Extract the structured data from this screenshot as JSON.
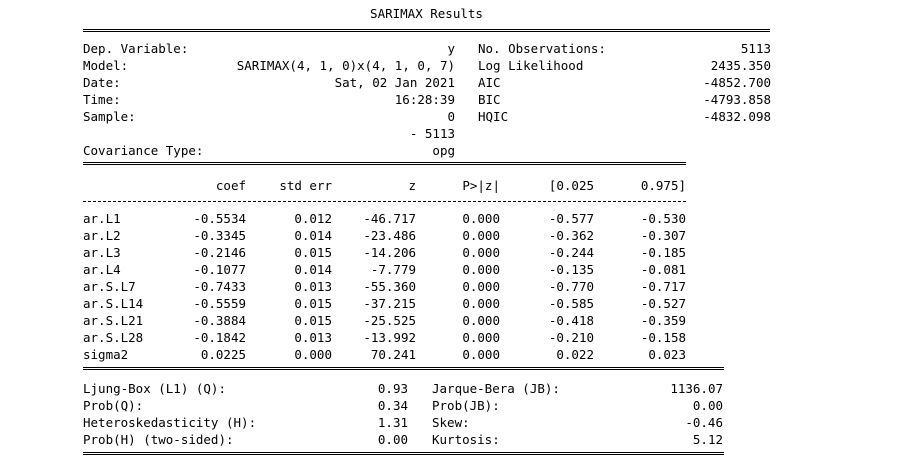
{
  "title": "SARIMAX Results",
  "header": {
    "left": [
      {
        "label": "Dep. Variable:",
        "value": "y"
      },
      {
        "label": "Model:",
        "value": "SARIMAX(4, 1, 0)x(4, 1, 0, 7)"
      },
      {
        "label": "Date:",
        "value": "Sat, 02 Jan 2021"
      },
      {
        "label": "Time:",
        "value": "16:28:39"
      },
      {
        "label": "Sample:",
        "value": "0"
      },
      {
        "label": "",
        "value": "- 5113"
      },
      {
        "label": "Covariance Type:",
        "value": "opg"
      }
    ],
    "right": [
      {
        "label": "No. Observations:",
        "value": "5113"
      },
      {
        "label": "Log Likelihood",
        "value": "2435.350"
      },
      {
        "label": "AIC",
        "value": "-4852.700"
      },
      {
        "label": "BIC",
        "value": "-4793.858"
      },
      {
        "label": "HQIC",
        "value": "-4832.098"
      }
    ]
  },
  "coef_table": {
    "columns": [
      "coef",
      "std err",
      "z",
      "P>|z|",
      "[0.025",
      "0.975]"
    ],
    "rows": [
      {
        "name": "ar.L1",
        "values": [
          "-0.5534",
          "0.012",
          "-46.717",
          "0.000",
          "-0.577",
          "-0.530"
        ]
      },
      {
        "name": "ar.L2",
        "values": [
          "-0.3345",
          "0.014",
          "-23.486",
          "0.000",
          "-0.362",
          "-0.307"
        ]
      },
      {
        "name": "ar.L3",
        "values": [
          "-0.2146",
          "0.015",
          "-14.206",
          "0.000",
          "-0.244",
          "-0.185"
        ]
      },
      {
        "name": "ar.L4",
        "values": [
          "-0.1077",
          "0.014",
          "-7.779",
          "0.000",
          "-0.135",
          "-0.081"
        ]
      },
      {
        "name": "ar.S.L7",
        "values": [
          "-0.7433",
          "0.013",
          "-55.360",
          "0.000",
          "-0.770",
          "-0.717"
        ]
      },
      {
        "name": "ar.S.L14",
        "values": [
          "-0.5559",
          "0.015",
          "-37.215",
          "0.000",
          "-0.585",
          "-0.527"
        ]
      },
      {
        "name": "ar.S.L21",
        "values": [
          "-0.3884",
          "0.015",
          "-25.525",
          "0.000",
          "-0.418",
          "-0.359"
        ]
      },
      {
        "name": "ar.S.L28",
        "values": [
          "-0.1842",
          "0.013",
          "-13.992",
          "0.000",
          "-0.210",
          "-0.158"
        ]
      },
      {
        "name": "sigma2",
        "values": [
          "0.0225",
          "0.000",
          "70.241",
          "0.000",
          "0.022",
          "0.023"
        ]
      }
    ]
  },
  "diagnostics": {
    "left": [
      {
        "label": "Ljung-Box (L1) (Q):",
        "value": "0.93"
      },
      {
        "label": "Prob(Q):",
        "value": "0.34"
      },
      {
        "label": "Heteroskedasticity (H):",
        "value": "1.31"
      },
      {
        "label": "Prob(H) (two-sided):",
        "value": "0.00"
      }
    ],
    "right": [
      {
        "label": "Jarque-Bera (JB):",
        "value": "1136.07"
      },
      {
        "label": "Prob(JB):",
        "value": "0.00"
      },
      {
        "label": "Skew:",
        "value": "-0.46"
      },
      {
        "label": "Kurtosis:",
        "value": "5.12"
      }
    ]
  }
}
